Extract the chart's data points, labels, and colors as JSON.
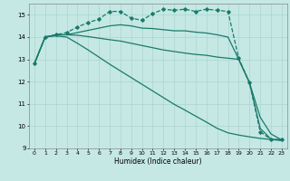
{
  "title": "",
  "xlabel": "Humidex (Indice chaleur)",
  "xlim": [
    -0.5,
    23.5
  ],
  "ylim": [
    9,
    15.5
  ],
  "yticks": [
    9,
    10,
    11,
    12,
    13,
    14,
    15
  ],
  "xticks": [
    0,
    1,
    2,
    3,
    4,
    5,
    6,
    7,
    8,
    9,
    10,
    11,
    12,
    13,
    14,
    15,
    16,
    17,
    18,
    19,
    20,
    21,
    22,
    23
  ],
  "bg_color": "#c5e8e5",
  "grid_color": "#aad4d0",
  "line_color": "#1a7a6a",
  "lines": [
    {
      "x": [
        0,
        1,
        2,
        3,
        4,
        5,
        6,
        7,
        8,
        9,
        10,
        11,
        12,
        13,
        14,
        15,
        16,
        17,
        18,
        19,
        20,
        21,
        22,
        23
      ],
      "y": [
        12.8,
        14.0,
        14.1,
        14.2,
        14.45,
        14.65,
        14.8,
        15.15,
        15.15,
        14.85,
        14.75,
        15.05,
        15.25,
        15.2,
        15.25,
        15.15,
        15.25,
        15.2,
        15.15,
        13.05,
        11.95,
        9.75,
        9.4,
        9.4
      ],
      "marker": "D",
      "markersize": 1.8,
      "linewidth": 0.9,
      "dashed": true
    },
    {
      "x": [
        0,
        1,
        2,
        3,
        4,
        5,
        6,
        7,
        8,
        9,
        10,
        11,
        12,
        13,
        14,
        15,
        16,
        17,
        18,
        19,
        20,
        21,
        22,
        23
      ],
      "y": [
        12.8,
        14.0,
        14.1,
        14.1,
        14.2,
        14.3,
        14.4,
        14.5,
        14.55,
        14.5,
        14.4,
        14.38,
        14.33,
        14.28,
        14.28,
        14.22,
        14.18,
        14.1,
        14.0,
        13.0,
        11.95,
        9.9,
        9.42,
        9.38
      ],
      "marker": null,
      "markersize": 0,
      "linewidth": 0.9,
      "dashed": false
    },
    {
      "x": [
        0,
        1,
        2,
        3,
        4,
        5,
        6,
        7,
        8,
        9,
        10,
        11,
        12,
        13,
        14,
        15,
        16,
        17,
        18,
        19,
        20,
        21,
        22,
        23
      ],
      "y": [
        12.8,
        14.0,
        14.1,
        14.1,
        14.08,
        14.02,
        13.95,
        13.88,
        13.82,
        13.72,
        13.62,
        13.52,
        13.42,
        13.35,
        13.28,
        13.22,
        13.18,
        13.1,
        13.05,
        13.0,
        11.95,
        10.4,
        9.65,
        9.38
      ],
      "marker": null,
      "markersize": 0,
      "linewidth": 0.9,
      "dashed": false
    },
    {
      "x": [
        0,
        1,
        2,
        3,
        4,
        5,
        6,
        7,
        8,
        9,
        10,
        11,
        12,
        13,
        14,
        15,
        16,
        17,
        18,
        19,
        20,
        21,
        22,
        23
      ],
      "y": [
        12.8,
        14.0,
        14.05,
        14.0,
        13.72,
        13.42,
        13.1,
        12.78,
        12.48,
        12.18,
        11.88,
        11.58,
        11.28,
        10.98,
        10.72,
        10.45,
        10.18,
        9.9,
        9.7,
        9.6,
        9.52,
        9.45,
        9.4,
        9.35
      ],
      "marker": null,
      "markersize": 0,
      "linewidth": 0.9,
      "dashed": false
    }
  ]
}
